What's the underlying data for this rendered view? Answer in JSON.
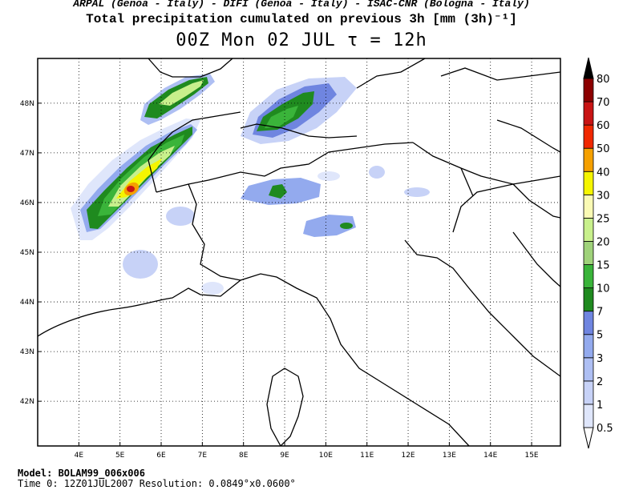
{
  "header": {
    "credits": "ARPAL (Genoa - Italy)  -  DIFI (Genoa - Italy)  -  ISAC-CNR (Bologna - Italy)",
    "title": "Total precipitation cumulated on previous 3h [mm (3h)⁻¹]",
    "subtitle": "00Z Mon 02 JUL  τ = 12h"
  },
  "map": {
    "lon_range": [
      3.0,
      15.7
    ],
    "lat_range": [
      41.1,
      48.9
    ],
    "lon_ticks": [
      "4E",
      "5E",
      "6E",
      "7E",
      "8E",
      "9E",
      "10E",
      "11E",
      "12E",
      "13E",
      "14E",
      "15E"
    ],
    "lat_ticks": [
      "42N",
      "43N",
      "44N",
      "45N",
      "46N",
      "47N",
      "48N"
    ]
  },
  "colorbar": {
    "levels": [
      "0.5",
      "1",
      "2",
      "3",
      "5",
      "7",
      "10",
      "15",
      "20",
      "25",
      "30",
      "40",
      "50",
      "60",
      "70",
      "80"
    ],
    "colors": [
      "#dfe6fb",
      "#c7d2f7",
      "#aebff3",
      "#93aaee",
      "#6f85e0",
      "#1f8a1f",
      "#3ab43a",
      "#9fd27a",
      "#c8f08c",
      "#fafab4",
      "#f5f500",
      "#f5a000",
      "#f02800",
      "#c81414",
      "#8c0000",
      "#000000"
    ]
  },
  "footer": {
    "model": "Model: BOLAM99_006x006",
    "time": "Time 0: 12Z01JUL2007     Resolution: 0.0849°x0.0600°"
  }
}
